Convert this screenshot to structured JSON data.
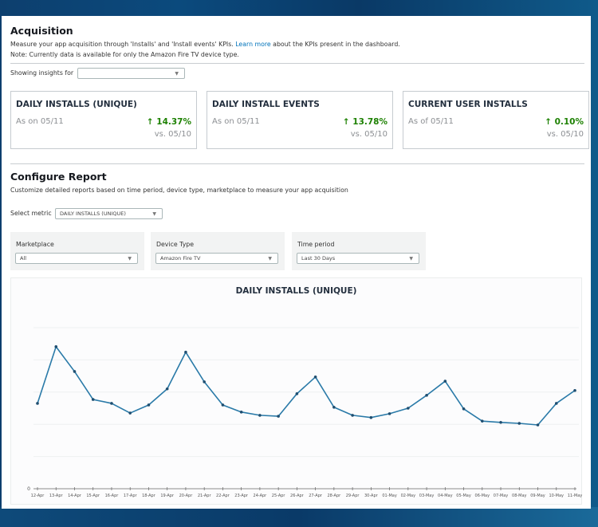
{
  "acquisition": {
    "title": "Acquisition",
    "description_before_link": "Measure your app acquisition through 'Installs' and 'Install events' KPIs. ",
    "learn_more_link": "Learn more",
    "description_after_link": " about the KPIs present in the dashboard.",
    "note": "Note: Currently data is available for only the Amazon Fire TV device type.",
    "showing_insights_label": "Showing insights for",
    "showing_insights_value": ""
  },
  "kpis": [
    {
      "title": "DAILY INSTALLS (UNIQUE)",
      "date": "As on 05/11",
      "change": "14.37%",
      "direction": "up",
      "compare": "vs. 05/10"
    },
    {
      "title": "DAILY INSTALL EVENTS",
      "date": "As on 05/11",
      "change": "13.78%",
      "direction": "up",
      "compare": "vs. 05/10"
    },
    {
      "title": "CURRENT USER INSTALLS",
      "date": "As of 05/11",
      "change": "0.10%",
      "direction": "up",
      "compare": "vs. 05/10"
    }
  ],
  "icons": {
    "up_arrow": "↑",
    "chevron_down": "▼"
  },
  "configure": {
    "title": "Configure Report",
    "description": "Customize detailed reports based on time period, device type, marketplace to measure your app acquisition",
    "select_metric_label": "Select metric",
    "select_metric_value": "DAILY INSTALLS (UNIQUE)",
    "filters": [
      {
        "label": "Marketplace",
        "value": "All"
      },
      {
        "label": "Device Type",
        "value": "Amazon Fire TV"
      },
      {
        "label": "Time period",
        "value": "Last 30 Days"
      }
    ]
  },
  "colors": {
    "positive": "#1d8102",
    "line": "#2a7aa8",
    "link": "#0073bb",
    "heading": "#232f3e"
  },
  "chart_data": {
    "type": "line",
    "title": "DAILY INSTALLS (UNIQUE)",
    "xlabel": "",
    "ylabel": "",
    "y_tick_labels_visible": [
      "0"
    ],
    "grid": true,
    "note": "Y-axis tick values are not legible except 0; values below are estimated in gridline units (1 gridline = 100).",
    "ylim": [
      0,
      500
    ],
    "categories": [
      "12-Apr",
      "13-Apr",
      "14-Apr",
      "15-Apr",
      "16-Apr",
      "17-Apr",
      "18-Apr",
      "19-Apr",
      "20-Apr",
      "21-Apr",
      "22-Apr",
      "23-Apr",
      "24-Apr",
      "25-Apr",
      "26-Apr",
      "27-Apr",
      "28-Apr",
      "29-Apr",
      "30-Apr",
      "01-May",
      "02-May",
      "03-May",
      "04-May",
      "05-May",
      "06-May",
      "07-May",
      "08-May",
      "09-May",
      "10-May",
      "11-May"
    ],
    "values": [
      265,
      441,
      364,
      277,
      265,
      235,
      260,
      310,
      424,
      332,
      260,
      238,
      228,
      225,
      295,
      347,
      253,
      228,
      221,
      233,
      250,
      290,
      334,
      248,
      210,
      206,
      203,
      198,
      265,
      305
    ]
  }
}
